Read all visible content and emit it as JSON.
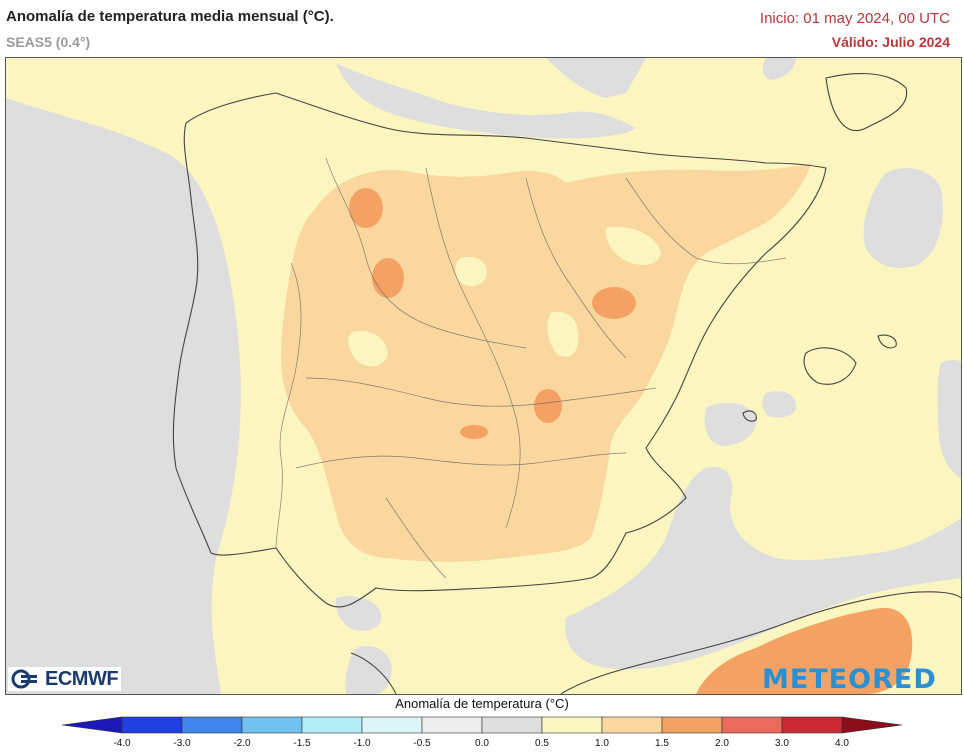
{
  "header": {
    "title": "Anomalía de temperatura media mensual (°C).",
    "model": "SEAS5 (0.4°)",
    "init": "Inicio: 01 may 2024, 00 UTC",
    "valid": "Válido: Julio 2024"
  },
  "logos": {
    "ecmwf": "ECMWF",
    "meteored": "METEORED"
  },
  "colorbar": {
    "title": "Anomalía de temperatura (°C)",
    "ticks": [
      "-4.0",
      "-3.0",
      "-2.0",
      "-1.5",
      "-1.0",
      "-0.5",
      "0.0",
      "0.5",
      "1.0",
      "1.5",
      "2.0",
      "3.0",
      "4.0"
    ],
    "colors": [
      "#1f3fe0",
      "#3f86ec",
      "#6fc2f2",
      "#b2ecf7",
      "#dcf6f7",
      "#ededed",
      "#dedede",
      "#fbf5c0",
      "#f9d79e",
      "#f4a263",
      "#ea6a5c",
      "#c72a33"
    ],
    "under_color": "#1d18b8",
    "over_color": "#8b0d1a"
  },
  "map_colors": {
    "base": "#fbf5c0",
    "neutral": "#dedede",
    "warm1": "#f9d79e",
    "warm2": "#f4a263"
  }
}
